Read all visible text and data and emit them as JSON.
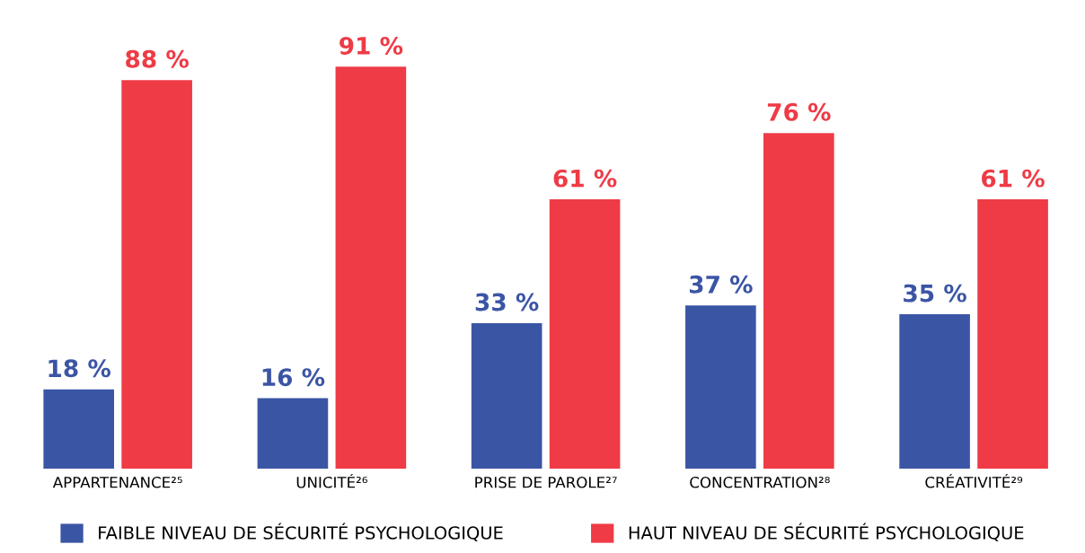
{
  "chart_data": {
    "type": "bar",
    "categories": [
      "APPARTENANCE²⁵",
      "UNICITÉ²⁶",
      "PRISE DE PAROLE²⁷",
      "CONCENTRATION²⁸",
      "CRÉATIVITÉ²⁹"
    ],
    "series": [
      {
        "name": "FAIBLE NIVEAU DE SÉCURITÉ PSYCHOLOGIQUE",
        "color": "#3b55a5",
        "values": [
          18,
          16,
          33,
          37,
          35
        ],
        "value_labels": [
          "18 %",
          "16 %",
          "33 %",
          "37 %",
          "35 %"
        ]
      },
      {
        "name": "HAUT NIVEAU DE SÉCURITÉ PSYCHOLOGIQUE",
        "color": "#ee3b46",
        "values": [
          88,
          91,
          61,
          76,
          61
        ],
        "value_labels": [
          "88 %",
          "91 %",
          "61 %",
          "76 %",
          "61 %"
        ]
      }
    ],
    "grid": false,
    "legend": "bottom"
  }
}
